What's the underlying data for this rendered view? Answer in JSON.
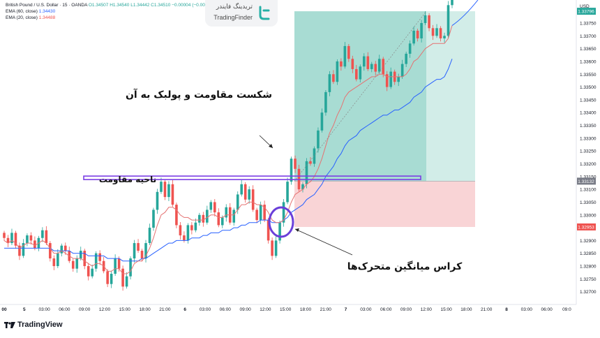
{
  "legend": {
    "symbol": "British Pound / U.S. Dollar · 15 · OANDA",
    "ohlc": "O1.34507 H1.34540 L1.34442 C1.34510 −0.00004 (−0.00%)",
    "ema60_label": "EMA (60, close)",
    "ema60_value": "1.34430",
    "ema20_label": "EMA (20, close)",
    "ema20_value": "1.34488"
  },
  "brand": {
    "persian": "تریدینگ فایندر",
    "english": "TradingFinder"
  },
  "footer": {
    "label": "TradingView"
  },
  "currency": "USD",
  "annotations": {
    "breakout": "شکست مقاومت و پولبک به آن",
    "zone": "ناحیه مقاومت",
    "cross": "کراس میانگین متحرک‌ها"
  },
  "colors": {
    "bull": "#26a69a",
    "bear": "#ef5350",
    "ema_slow": "#2962ff",
    "ema_fast": "#e57373",
    "zone": "#7b3fe4",
    "circle": "#6a3fd9",
    "profit": "#a8dcd3",
    "loss": "#f9d4d6",
    "profit_light": "#d2ede8"
  },
  "chart_data": {
    "type": "candlestick",
    "ylim": [
      1.3265,
      1.3384
    ],
    "y_ticks": [
      "1.33796",
      "1.33750",
      "1.33700",
      "1.33650",
      "1.33600",
      "1.33550",
      "1.33500",
      "1.33450",
      "1.33400",
      "1.33350",
      "1.33300",
      "1.33250",
      "1.33200",
      "1.33150",
      "1.33132",
      "1.33100",
      "1.33050",
      "1.33000",
      "1.32953",
      "1.32900",
      "1.32850",
      "1.32800",
      "1.32750",
      "1.32700"
    ],
    "x_ticks": [
      "00",
      "5",
      "03:00",
      "06:00",
      "09:00",
      "12:00",
      "15:00",
      "18:00",
      "21:00",
      "6",
      "03:00",
      "06:00",
      "09:00",
      "12:00",
      "15:00",
      "18:00",
      "21:00",
      "7",
      "03:00",
      "06:00",
      "09:00",
      "12:00",
      "15:00",
      "18:00",
      "21:00",
      "8",
      "03:00",
      "06:00",
      "09:0"
    ],
    "price_labels": {
      "target": "1.33796",
      "entry": "1.33132",
      "stop": "1.32953"
    },
    "resistance_level": 1.33145,
    "close_path": [
      1.3291,
      1.3289,
      1.3293,
      1.3288,
      1.3284,
      1.3289,
      1.3292,
      1.329,
      1.3287,
      1.3291,
      1.3294,
      1.3289,
      1.3283,
      1.328,
      1.3285,
      1.3288,
      1.3286,
      1.3282,
      1.3279,
      1.3283,
      1.3286,
      1.328,
      1.3276,
      1.3279,
      1.3285,
      1.3282,
      1.3278,
      1.3273,
      1.3277,
      1.3283,
      1.3279,
      1.3272,
      1.3276,
      1.3283,
      1.3289,
      1.3286,
      1.3283,
      1.3289,
      1.3295,
      1.3302,
      1.3309,
      1.3313,
      1.3307,
      1.3312,
      1.3304,
      1.3296,
      1.3292,
      1.329,
      1.3296,
      1.3294,
      1.3297,
      1.33,
      1.3297,
      1.3302,
      1.3305,
      1.3301,
      1.3296,
      1.3299,
      1.3303,
      1.3297,
      1.3302,
      1.3308,
      1.3312,
      1.3306,
      1.331,
      1.3302,
      1.3298,
      1.3304,
      1.3298,
      1.329,
      1.3284,
      1.329,
      1.3297,
      1.3305,
      1.3313,
      1.3322,
      1.3318,
      1.331,
      1.3312,
      1.3321,
      1.332,
      1.3326,
      1.3333,
      1.334,
      1.3348,
      1.3355,
      1.3352,
      1.336,
      1.3358,
      1.3366,
      1.3361,
      1.3357,
      1.3353,
      1.3358,
      1.3362,
      1.3357,
      1.3359,
      1.3356,
      1.3361,
      1.3355,
      1.335,
      1.3356,
      1.3352,
      1.3354,
      1.3359,
      1.3363,
      1.3367,
      1.3372,
      1.3369,
      1.3375,
      1.3378,
      1.3373,
      1.337,
      1.3373,
      1.3369,
      1.337,
      1.3382,
      1.3395
    ],
    "ema_fast_path": [
      1.329,
      1.3289,
      1.329,
      1.3289,
      1.3287,
      1.3288,
      1.3289,
      1.3289,
      1.3288,
      1.3289,
      1.329,
      1.3289,
      1.3287,
      1.3285,
      1.3285,
      1.3286,
      1.3285,
      1.3284,
      1.3283,
      1.3283,
      1.3283,
      1.3282,
      1.3281,
      1.328,
      1.3281,
      1.3281,
      1.328,
      1.3278,
      1.3278,
      1.3279,
      1.3279,
      1.3277,
      1.3277,
      1.3278,
      1.3281,
      1.3282,
      1.3282,
      1.3284,
      1.3287,
      1.3291,
      1.3296,
      1.33,
      1.3301,
      1.3303,
      1.3303,
      1.3302,
      1.33,
      1.3299,
      1.3299,
      1.3298,
      1.3298,
      1.3298,
      1.3298,
      1.3299,
      1.33,
      1.33,
      1.3299,
      1.3299,
      1.33,
      1.33,
      1.33,
      1.3302,
      1.3304,
      1.3304,
      1.3305,
      1.3305,
      1.3304,
      1.3304,
      1.3303,
      1.3301,
      1.3298,
      1.3297,
      1.3297,
      1.3298,
      1.3301,
      1.3305,
      1.3308,
      1.3309,
      1.331,
      1.3312,
      1.3313,
      1.3315,
      1.3318,
      1.3322,
      1.3327,
      1.3332,
      1.3335,
      1.3339,
      1.3342,
      1.3346,
      1.3348,
      1.3349,
      1.335,
      1.3351,
      1.3352,
      1.3353,
      1.3354,
      1.3354,
      1.3355,
      1.3355,
      1.3354,
      1.3354,
      1.3354,
      1.3354,
      1.3354,
      1.3355,
      1.3357,
      1.336,
      1.3361,
      1.3363,
      1.3365,
      1.3366,
      1.3367,
      1.3367,
      1.3367,
      1.3367,
      1.3369,
      1.3374
    ],
    "ema_slow_path": [
      1.3287,
      1.3287,
      1.3287,
      1.3287,
      1.3287,
      1.3287,
      1.3287,
      1.3287,
      1.3287,
      1.3287,
      1.3287,
      1.3287,
      1.3287,
      1.3286,
      1.3286,
      1.3286,
      1.3286,
      1.3286,
      1.3285,
      1.3285,
      1.3285,
      1.3285,
      1.3284,
      1.3284,
      1.3284,
      1.3284,
      1.3284,
      1.3283,
      1.3283,
      1.3283,
      1.3283,
      1.3282,
      1.3282,
      1.3282,
      1.3282,
      1.3282,
      1.3283,
      1.3283,
      1.3284,
      1.3285,
      1.3286,
      1.3287,
      1.3288,
      1.3289,
      1.3289,
      1.329,
      1.329,
      1.329,
      1.329,
      1.3291,
      1.3291,
      1.3291,
      1.3292,
      1.3292,
      1.3293,
      1.3293,
      1.3293,
      1.3294,
      1.3294,
      1.3294,
      1.3295,
      1.3295,
      1.3296,
      1.3296,
      1.3297,
      1.3297,
      1.3297,
      1.3298,
      1.3298,
      1.3298,
      1.3297,
      1.3297,
      1.3297,
      1.3298,
      1.3299,
      1.3301,
      1.3302,
      1.3303,
      1.3304,
      1.3306,
      1.3307,
      1.3308,
      1.331,
      1.3312,
      1.3315,
      1.3317,
      1.3319,
      1.3322,
      1.3324,
      1.3327,
      1.3329,
      1.333,
      1.3331,
      1.3333,
      1.3334,
      1.3335,
      1.3336,
      1.3337,
      1.3338,
      1.3339,
      1.3339,
      1.334,
      1.3341,
      1.3341,
      1.3342,
      1.3343,
      1.3344,
      1.3346,
      1.3347,
      1.3348,
      1.335,
      1.3351,
      1.3352,
      1.3353,
      1.3353,
      1.3354,
      1.3357,
      1.3361
    ]
  }
}
